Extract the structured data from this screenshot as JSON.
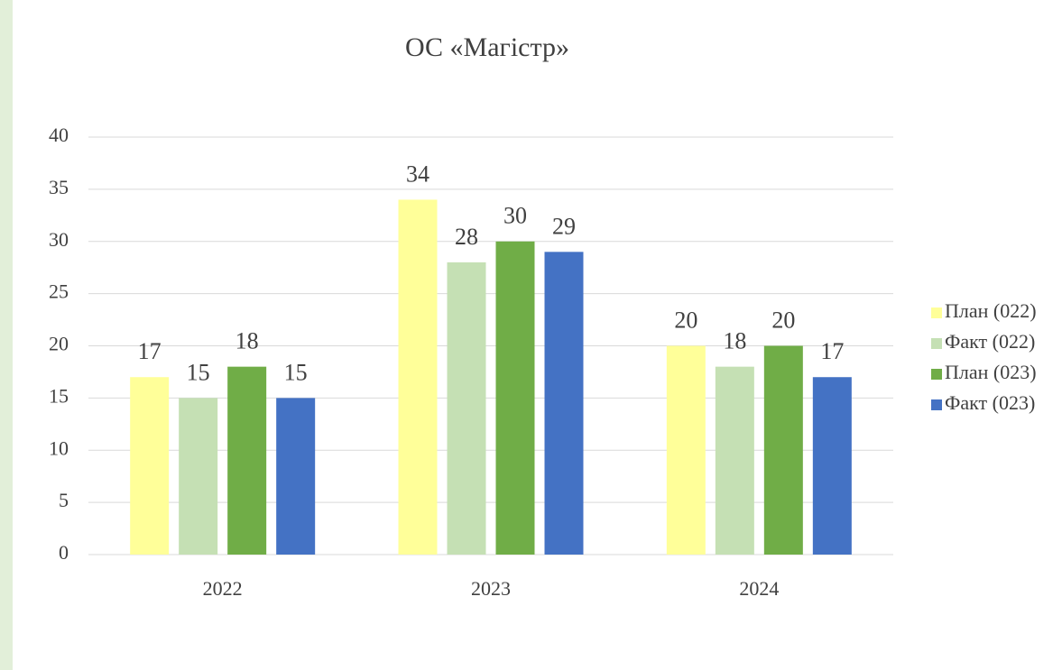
{
  "chart_data": {
    "type": "bar",
    "title": "ОС «Магістр»",
    "categories": [
      "2022",
      "2023",
      "2024"
    ],
    "series": [
      {
        "name": "План (022)",
        "color": "#ffff99",
        "values": [
          17,
          34,
          20
        ]
      },
      {
        "name": "Факт (022)",
        "color": "#c5e0b4",
        "values": [
          15,
          28,
          18
        ]
      },
      {
        "name": "План (023)",
        "color": "#70ad47",
        "values": [
          18,
          30,
          20
        ]
      },
      {
        "name": "Факт (023)",
        "color": "#4472c4",
        "values": [
          15,
          29,
          17
        ]
      }
    ],
    "ylim": [
      0,
      40
    ],
    "yticks": [
      0,
      5,
      10,
      15,
      20,
      25,
      30,
      35,
      40
    ],
    "grid": true,
    "legend": "right"
  }
}
